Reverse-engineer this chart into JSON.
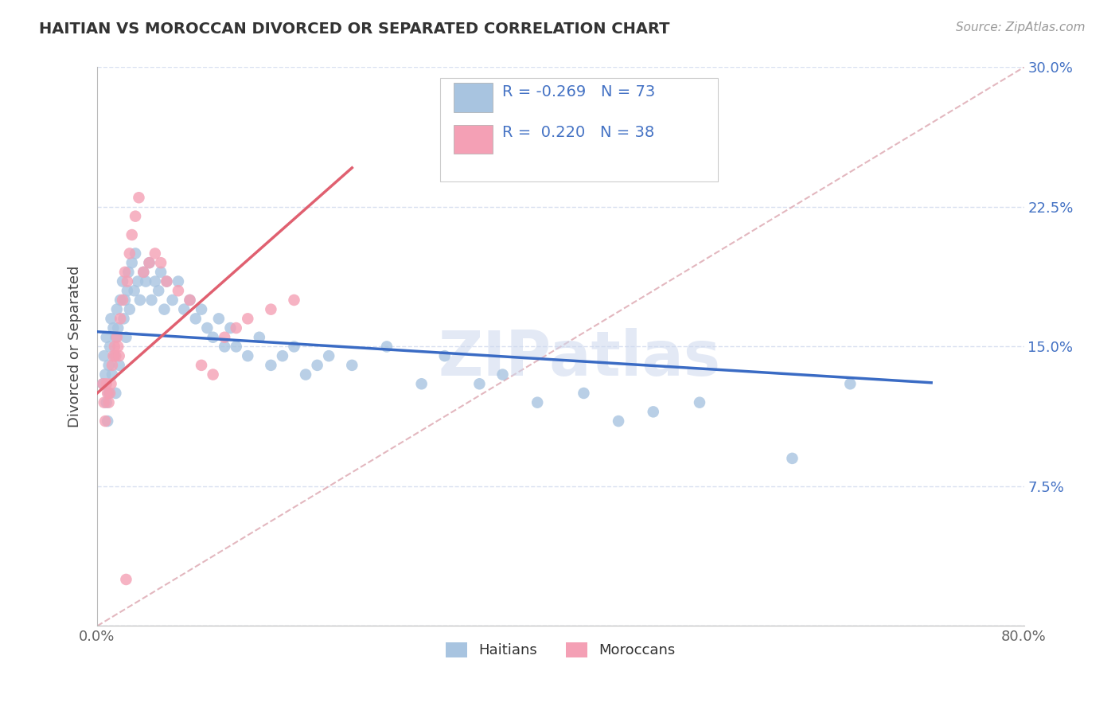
{
  "title": "HAITIAN VS MOROCCAN DIVORCED OR SEPARATED CORRELATION CHART",
  "source": "Source: ZipAtlas.com",
  "ylabel": "Divorced or Separated",
  "xlim": [
    0,
    0.8
  ],
  "ylim": [
    0,
    0.3
  ],
  "yticks": [
    0.0,
    0.075,
    0.15,
    0.225,
    0.3
  ],
  "yticklabels": [
    "",
    "7.5%",
    "15.0%",
    "22.5%",
    "30.0%"
  ],
  "haitian_color": "#a8c4e0",
  "moroccan_color": "#f4a0b5",
  "haitian_line_color": "#3a6bc4",
  "moroccan_line_color": "#e06070",
  "ref_line_color": "#e0b0b8",
  "legend_text_color": "#4472c4",
  "background_color": "#ffffff",
  "grid_color": "#d8e0f0",
  "watermark": "ZIPatlas",
  "R_haitian": -0.269,
  "N_haitian": 73,
  "R_moroccan": 0.22,
  "N_moroccan": 38,
  "haitian_x": [
    0.005,
    0.006,
    0.007,
    0.008,
    0.008,
    0.009,
    0.01,
    0.01,
    0.011,
    0.012,
    0.013,
    0.014,
    0.015,
    0.016,
    0.016,
    0.017,
    0.018,
    0.019,
    0.02,
    0.022,
    0.023,
    0.024,
    0.025,
    0.026,
    0.027,
    0.028,
    0.03,
    0.032,
    0.033,
    0.035,
    0.037,
    0.04,
    0.042,
    0.045,
    0.047,
    0.05,
    0.053,
    0.055,
    0.058,
    0.06,
    0.065,
    0.07,
    0.075,
    0.08,
    0.085,
    0.09,
    0.095,
    0.1,
    0.105,
    0.11,
    0.115,
    0.12,
    0.13,
    0.14,
    0.15,
    0.16,
    0.17,
    0.18,
    0.19,
    0.2,
    0.22,
    0.25,
    0.28,
    0.3,
    0.33,
    0.35,
    0.38,
    0.42,
    0.45,
    0.48,
    0.52,
    0.6,
    0.65
  ],
  "haitian_y": [
    0.13,
    0.145,
    0.135,
    0.12,
    0.155,
    0.11,
    0.14,
    0.125,
    0.15,
    0.165,
    0.135,
    0.16,
    0.145,
    0.155,
    0.125,
    0.17,
    0.16,
    0.14,
    0.175,
    0.185,
    0.165,
    0.175,
    0.155,
    0.18,
    0.19,
    0.17,
    0.195,
    0.18,
    0.2,
    0.185,
    0.175,
    0.19,
    0.185,
    0.195,
    0.175,
    0.185,
    0.18,
    0.19,
    0.17,
    0.185,
    0.175,
    0.185,
    0.17,
    0.175,
    0.165,
    0.17,
    0.16,
    0.155,
    0.165,
    0.15,
    0.16,
    0.15,
    0.145,
    0.155,
    0.14,
    0.145,
    0.15,
    0.135,
    0.14,
    0.145,
    0.14,
    0.15,
    0.13,
    0.145,
    0.13,
    0.135,
    0.12,
    0.125,
    0.11,
    0.115,
    0.12,
    0.09,
    0.13
  ],
  "moroccan_x": [
    0.005,
    0.006,
    0.007,
    0.008,
    0.009,
    0.01,
    0.011,
    0.012,
    0.013,
    0.014,
    0.015,
    0.016,
    0.017,
    0.018,
    0.019,
    0.02,
    0.022,
    0.024,
    0.026,
    0.028,
    0.03,
    0.033,
    0.036,
    0.04,
    0.045,
    0.05,
    0.055,
    0.06,
    0.07,
    0.08,
    0.09,
    0.1,
    0.11,
    0.12,
    0.13,
    0.15,
    0.17,
    0.025
  ],
  "moroccan_y": [
    0.13,
    0.12,
    0.11,
    0.13,
    0.125,
    0.12,
    0.125,
    0.13,
    0.14,
    0.145,
    0.15,
    0.145,
    0.155,
    0.15,
    0.145,
    0.165,
    0.175,
    0.19,
    0.185,
    0.2,
    0.21,
    0.22,
    0.23,
    0.19,
    0.195,
    0.2,
    0.195,
    0.185,
    0.18,
    0.175,
    0.14,
    0.135,
    0.155,
    0.16,
    0.165,
    0.17,
    0.175,
    0.025
  ]
}
